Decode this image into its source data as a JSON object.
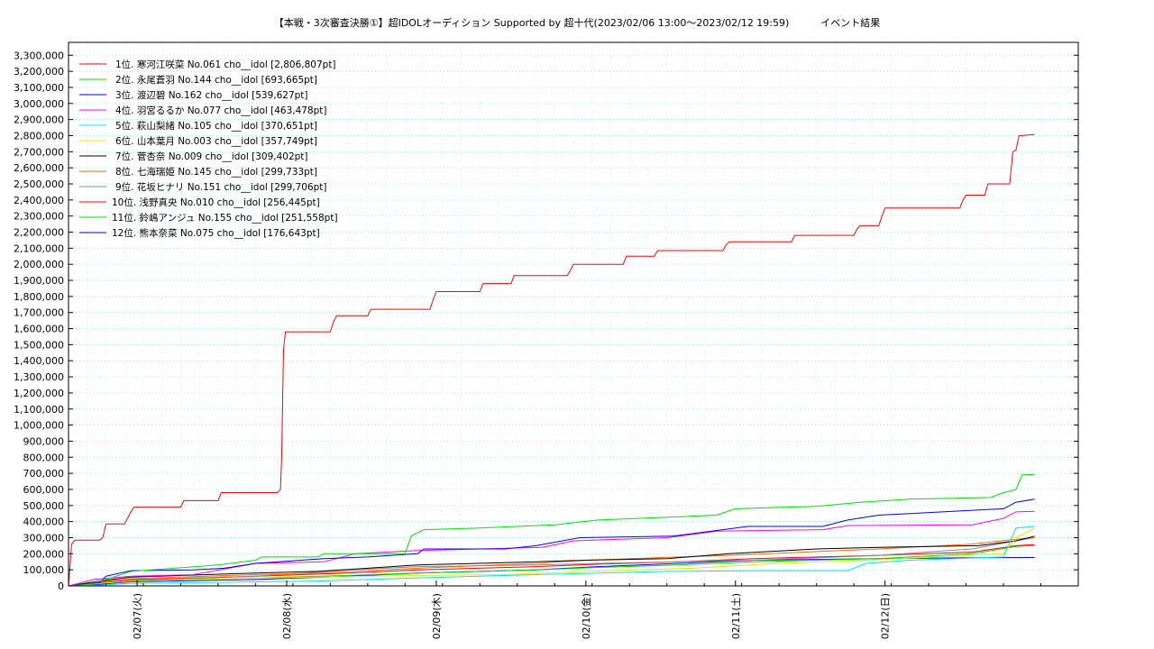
{
  "chart_data": {
    "type": "line",
    "title": "【本戦・3次審査決勝①】超IDOLオーディション Supported by 超十代(2023/02/06 13:00～2023/02/12 19:59)          イベント結果",
    "xlabel": "",
    "ylabel": "",
    "ylim": [
      0,
      3380000
    ],
    "xlim_hours": [
      0,
      162
    ],
    "x_start": "2023/02/06 13:00",
    "x_end": "2023/02/12 19:59",
    "x_ticks": [
      {
        "hour": 11,
        "label": "02/07(火)"
      },
      {
        "hour": 35,
        "label": "02/08(水)"
      },
      {
        "hour": 59,
        "label": "02/09(木)"
      },
      {
        "hour": 83,
        "label": "02/10(金)"
      },
      {
        "hour": 107,
        "label": "02/11(土)"
      },
      {
        "hour": 131,
        "label": "02/12(日)"
      }
    ],
    "y_ticks": [
      0,
      100000,
      200000,
      300000,
      400000,
      500000,
      600000,
      700000,
      800000,
      900000,
      1000000,
      1100000,
      1200000,
      1300000,
      1400000,
      1500000,
      1600000,
      1700000,
      1800000,
      1900000,
      2000000,
      2100000,
      2200000,
      2300000,
      2400000,
      2500000,
      2600000,
      2700000,
      2800000,
      2900000,
      3000000,
      3100000,
      3200000,
      3300000
    ],
    "y_tick_labels": [
      "0",
      "100,000",
      "200,000",
      "300,000",
      "400,000",
      "500,000",
      "600,000",
      "700,000",
      "800,000",
      "900,000",
      "1,000,000",
      "1,100,000",
      "1,200,000",
      "1,300,000",
      "1,400,000",
      "1,500,000",
      "1,600,000",
      "1,700,000",
      "1,800,000",
      "1,900,000",
      "2,000,000",
      "2,100,000",
      "2,200,000",
      "2,300,000",
      "2,400,000",
      "2,500,000",
      "2,600,000",
      "2,700,000",
      "2,800,000",
      "2,900,000",
      "3,000,000",
      "3,100,000",
      "3,200,000",
      "3,300,000"
    ],
    "grid": true,
    "legend_position": "top-left",
    "series": [
      {
        "name": "1位. 寒河江咲菜 No.061 cho__idol [2,806,807pt]",
        "color": "#ff0000",
        "points": [
          [
            0,
            0
          ],
          [
            0.5,
            260000
          ],
          [
            1,
            285000
          ],
          [
            5,
            285000
          ],
          [
            5.5,
            300000
          ],
          [
            6,
            385000
          ],
          [
            9,
            385000
          ],
          [
            10,
            460000
          ],
          [
            10.5,
            490000
          ],
          [
            18,
            490000
          ],
          [
            18.5,
            530000
          ],
          [
            24,
            530000
          ],
          [
            24.5,
            580000
          ],
          [
            33.5,
            580000
          ],
          [
            34,
            600000
          ],
          [
            34.2,
            800000
          ],
          [
            34.5,
            1470000
          ],
          [
            34.8,
            1580000
          ],
          [
            42,
            1580000
          ],
          [
            42.5,
            1640000
          ],
          [
            43,
            1680000
          ],
          [
            48,
            1680000
          ],
          [
            48.5,
            1720000
          ],
          [
            58,
            1720000
          ],
          [
            58.5,
            1780000
          ],
          [
            59,
            1830000
          ],
          [
            66,
            1830000
          ],
          [
            66.5,
            1880000
          ],
          [
            71,
            1880000
          ],
          [
            71.5,
            1930000
          ],
          [
            80,
            1930000
          ],
          [
            80.5,
            1960000
          ],
          [
            81,
            2000000
          ],
          [
            89,
            2000000
          ],
          [
            89.5,
            2050000
          ],
          [
            94,
            2050000
          ],
          [
            94.5,
            2085000
          ],
          [
            105,
            2085000
          ],
          [
            105.5,
            2120000
          ],
          [
            106,
            2140000
          ],
          [
            116,
            2140000
          ],
          [
            116.5,
            2180000
          ],
          [
            126,
            2180000
          ],
          [
            126.5,
            2220000
          ],
          [
            127,
            2240000
          ],
          [
            130,
            2240000
          ],
          [
            130.5,
            2300000
          ],
          [
            131,
            2350000
          ],
          [
            143,
            2350000
          ],
          [
            143.5,
            2400000
          ],
          [
            144,
            2430000
          ],
          [
            147,
            2430000
          ],
          [
            147.5,
            2500000
          ],
          [
            151,
            2500000
          ],
          [
            151.5,
            2700000
          ],
          [
            152,
            2710000
          ],
          [
            152.5,
            2800000
          ],
          [
            155,
            2806807
          ]
        ]
      },
      {
        "name": "2位. 永尾蒼羽 No.144 cho__idol [693,665pt]",
        "color": "#00e000",
        "points": [
          [
            0,
            0
          ],
          [
            3,
            10000
          ],
          [
            6,
            40000
          ],
          [
            10,
            90000
          ],
          [
            17,
            110000
          ],
          [
            24,
            130000
          ],
          [
            30,
            160000
          ],
          [
            31,
            180000
          ],
          [
            40,
            180000
          ],
          [
            41,
            200000
          ],
          [
            54,
            200000
          ],
          [
            55,
            310000
          ],
          [
            57,
            350000
          ],
          [
            66,
            360000
          ],
          [
            78,
            380000
          ],
          [
            85,
            410000
          ],
          [
            104,
            440000
          ],
          [
            107,
            480000
          ],
          [
            120,
            495000
          ],
          [
            127,
            520000
          ],
          [
            135,
            540000
          ],
          [
            148,
            550000
          ],
          [
            150,
            580000
          ],
          [
            152,
            600000
          ],
          [
            153,
            690000
          ],
          [
            155,
            693665
          ]
        ]
      },
      {
        "name": "3位. 渡辺碧 No.162 cho__idol [539,627pt]",
        "color": "#0000ff",
        "points": [
          [
            0,
            0
          ],
          [
            5,
            20000
          ],
          [
            6,
            60000
          ],
          [
            10,
            95000
          ],
          [
            20,
            100000
          ],
          [
            25,
            110000
          ],
          [
            30,
            140000
          ],
          [
            41,
            170000
          ],
          [
            48,
            180000
          ],
          [
            56,
            200000
          ],
          [
            57,
            230000
          ],
          [
            70,
            230000
          ],
          [
            75,
            250000
          ],
          [
            82,
            300000
          ],
          [
            97,
            310000
          ],
          [
            109,
            370000
          ],
          [
            121,
            370000
          ],
          [
            125,
            410000
          ],
          [
            130,
            440000
          ],
          [
            150,
            480000
          ],
          [
            152,
            520000
          ],
          [
            155,
            539627
          ]
        ]
      },
      {
        "name": "4位. 羽宮るるか No.077 cho__idol [463,478pt]",
        "color": "#ff00ff",
        "points": [
          [
            0,
            0
          ],
          [
            4,
            40000
          ],
          [
            10,
            60000
          ],
          [
            20,
            70000
          ],
          [
            30,
            140000
          ],
          [
            41,
            150000
          ],
          [
            46,
            200000
          ],
          [
            56,
            220000
          ],
          [
            76,
            240000
          ],
          [
            81,
            280000
          ],
          [
            96,
            300000
          ],
          [
            104,
            340000
          ],
          [
            121,
            350000
          ],
          [
            125,
            375000
          ],
          [
            145,
            380000
          ],
          [
            150,
            420000
          ],
          [
            152,
            460000
          ],
          [
            155,
            463478
          ]
        ]
      },
      {
        "name": "5位. 萩山梨緒 No.105 cho__idol [370,651pt]",
        "color": "#00e8e8",
        "points": [
          [
            0,
            0
          ],
          [
            5,
            5000
          ],
          [
            10,
            15000
          ],
          [
            20,
            20000
          ],
          [
            30,
            25000
          ],
          [
            40,
            30000
          ],
          [
            56,
            50000
          ],
          [
            75,
            70000
          ],
          [
            96,
            90000
          ],
          [
            110,
            95000
          ],
          [
            125,
            95000
          ],
          [
            128,
            140000
          ],
          [
            135,
            160000
          ],
          [
            150,
            180000
          ],
          [
            152,
            360000
          ],
          [
            155,
            370651
          ]
        ]
      },
      {
        "name": "6位. 山本葉月 No.003 cho__idol [357,749pt]",
        "color": "#e8e800",
        "points": [
          [
            0,
            0
          ],
          [
            5,
            15000
          ],
          [
            10,
            30000
          ],
          [
            30,
            50000
          ],
          [
            40,
            55000
          ],
          [
            56,
            65000
          ],
          [
            70,
            70000
          ],
          [
            83,
            90000
          ],
          [
            100,
            110000
          ],
          [
            114,
            140000
          ],
          [
            128,
            160000
          ],
          [
            150,
            200000
          ],
          [
            152,
            300000
          ],
          [
            155,
            357749
          ]
        ]
      },
      {
        "name": "7位. 菅杏奈 No.009 cho__idol [309,402pt]",
        "color": "#000000",
        "points": [
          [
            0,
            0
          ],
          [
            5,
            30000
          ],
          [
            10,
            55000
          ],
          [
            30,
            80000
          ],
          [
            40,
            90000
          ],
          [
            56,
            130000
          ],
          [
            75,
            150000
          ],
          [
            83,
            160000
          ],
          [
            96,
            170000
          ],
          [
            106,
            200000
          ],
          [
            120,
            230000
          ],
          [
            130,
            240000
          ],
          [
            146,
            250000
          ],
          [
            152,
            280000
          ],
          [
            155,
            309402
          ]
        ]
      },
      {
        "name": "8位. 七海瑞姫 No.145 cho__idol [299,733pt]",
        "color": "#ff6600",
        "points": [
          [
            0,
            0
          ],
          [
            5,
            25000
          ],
          [
            10,
            45000
          ],
          [
            30,
            70000
          ],
          [
            40,
            80000
          ],
          [
            56,
            110000
          ],
          [
            75,
            140000
          ],
          [
            83,
            160000
          ],
          [
            98,
            180000
          ],
          [
            106,
            190000
          ],
          [
            118,
            210000
          ],
          [
            130,
            230000
          ],
          [
            145,
            260000
          ],
          [
            152,
            290000
          ],
          [
            155,
            299733
          ]
        ]
      },
      {
        "name": "9位. 花坂ヒナリ No.151 cho__idol [299,706pt]",
        "color": "#888888",
        "points": [
          [
            0,
            0
          ],
          [
            5,
            30000
          ],
          [
            10,
            40000
          ],
          [
            30,
            60000
          ],
          [
            45,
            100000
          ],
          [
            56,
            120000
          ],
          [
            75,
            130000
          ],
          [
            85,
            140000
          ],
          [
            98,
            150000
          ],
          [
            110,
            160000
          ],
          [
            130,
            190000
          ],
          [
            145,
            230000
          ],
          [
            152,
            280000
          ],
          [
            155,
            299706
          ]
        ]
      },
      {
        "name": "10位. 浅野真央 No.010 cho__idol [256,445pt]",
        "color": "#ff0000",
        "points": [
          [
            0,
            0
          ],
          [
            5,
            20000
          ],
          [
            10,
            35000
          ],
          [
            30,
            60000
          ],
          [
            45,
            80000
          ],
          [
            56,
            100000
          ],
          [
            75,
            120000
          ],
          [
            85,
            135000
          ],
          [
            98,
            150000
          ],
          [
            110,
            170000
          ],
          [
            130,
            190000
          ],
          [
            145,
            210000
          ],
          [
            152,
            250000
          ],
          [
            155,
            256445
          ]
        ]
      },
      {
        "name": "11位. 鈴嶋アンジュ No.155 cho__idol [251,558pt]",
        "color": "#00e000",
        "points": [
          [
            0,
            0
          ],
          [
            5,
            15000
          ],
          [
            10,
            30000
          ],
          [
            30,
            50000
          ],
          [
            45,
            65000
          ],
          [
            56,
            80000
          ],
          [
            75,
            100000
          ],
          [
            85,
            115000
          ],
          [
            98,
            130000
          ],
          [
            110,
            150000
          ],
          [
            130,
            170000
          ],
          [
            145,
            200000
          ],
          [
            152,
            245000
          ],
          [
            155,
            251558
          ]
        ]
      },
      {
        "name": "12位. 熊本奈菜 No.075 cho__idol [176,643pt]",
        "color": "#0000ff",
        "points": [
          [
            0,
            0
          ],
          [
            5,
            10000
          ],
          [
            10,
            25000
          ],
          [
            30,
            40000
          ],
          [
            45,
            60000
          ],
          [
            56,
            80000
          ],
          [
            75,
            100000
          ],
          [
            85,
            120000
          ],
          [
            98,
            140000
          ],
          [
            110,
            160000
          ],
          [
            130,
            170000
          ],
          [
            145,
            175000
          ],
          [
            155,
            176643
          ]
        ]
      }
    ]
  }
}
